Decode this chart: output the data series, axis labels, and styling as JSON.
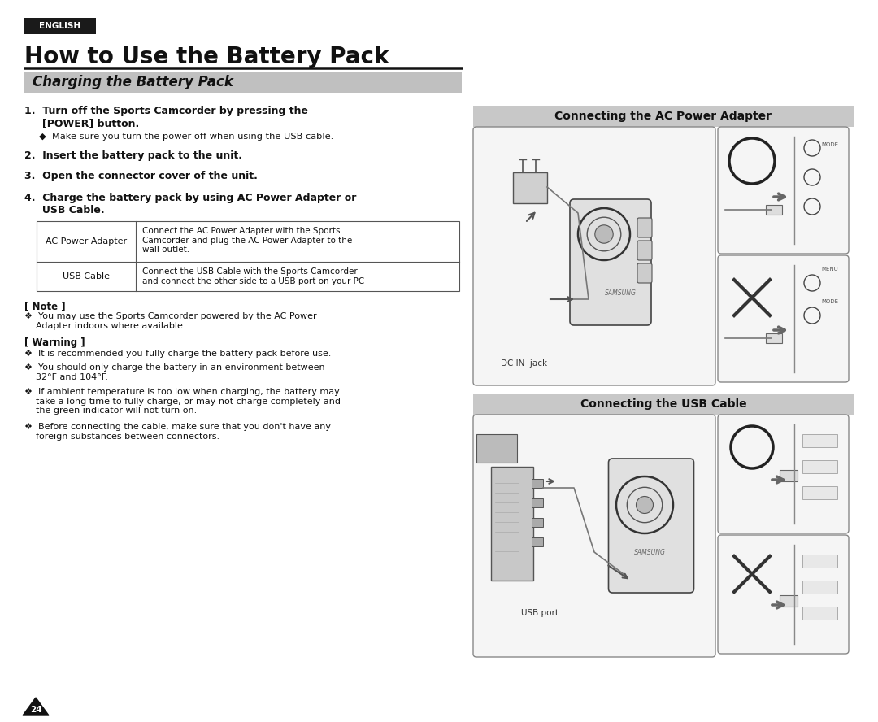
{
  "bg_color": "#ffffff",
  "english_badge_bg": "#1a1a1a",
  "english_badge_text": "ENGLISH",
  "english_badge_text_color": "#ffffff",
  "main_title": "How to Use the Battery Pack",
  "section_title": "Charging the Battery Pack",
  "section_title_bg": "#c0c0c0",
  "step1_line1": "1.  Turn off the Sports Camcorder by pressing the",
  "step1_line2": "     [POWER] button.",
  "step1_bullet": "◆  Make sure you turn the power off when using the USB cable.",
  "step2": "2.  Insert the battery pack to the unit.",
  "step3": "3.  Open the connector cover of the unit.",
  "step4_line1": "4.  Charge the battery pack by using AC Power Adapter or",
  "step4_line2": "     USB Cable.",
  "table_row1_label": "AC Power Adapter",
  "table_row1_desc": "Connect the AC Power Adapter with the Sports\nCamcorder and plug the AC Power Adapter to the\nwall outlet.",
  "table_row2_label": "USB Cable",
  "table_row2_desc": "Connect the USB Cable with the Sports Camcorder\nand connect the other side to a USB port on your PC",
  "note_header": "[ Note ]",
  "note_bullet": "❖  You may use the Sports Camcorder powered by the AC Power\n    Adapter indoors where available.",
  "warning_header": "[ Warning ]",
  "warning_bullets": [
    "❖  It is recommended you fully charge the battery pack before use.",
    "❖  You should only charge the battery in an environment between\n    32°F and 104°F.",
    "❖  If ambient temperature is too low when charging, the battery may\n    take a long time to fully charge, or may not charge completely and\n    the green indicator will not turn on.",
    "❖  Before connecting the cable, make sure that you don't have any\n    foreign substances between connectors."
  ],
  "page_number": "24",
  "ac_adapter_header": "Connecting the AC Power Adapter",
  "usb_header": "Connecting the USB Cable",
  "dc_in_label": "DC IN  jack",
  "usb_port_label": "USB port",
  "samsung_text": "SAMSUNG"
}
